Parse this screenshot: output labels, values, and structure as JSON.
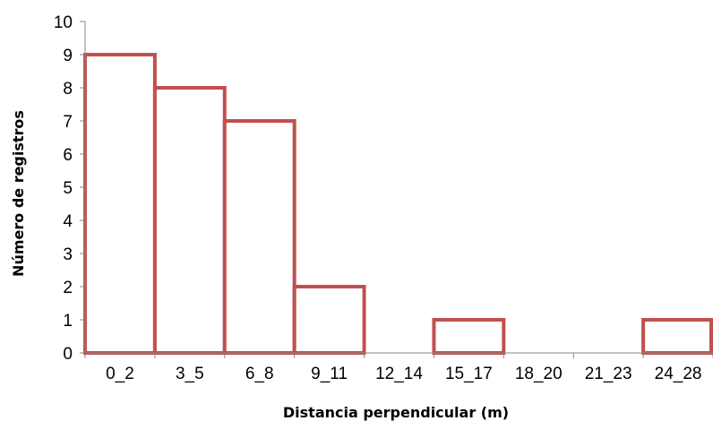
{
  "chart_data": {
    "type": "bar",
    "title": "",
    "xlabel": "Distancia perpendicular (m)",
    "ylabel": "Número de registros",
    "categories": [
      "0_2",
      "3_5",
      "6_8",
      "9_11",
      "12_14",
      "15_17",
      "18_20",
      "21_23",
      "24_28"
    ],
    "values": [
      9,
      8,
      7,
      2,
      0,
      1,
      0,
      0,
      1
    ],
    "ylim": [
      0,
      10
    ],
    "yticks": [
      0,
      1,
      2,
      3,
      4,
      5,
      6,
      7,
      8,
      9,
      10
    ],
    "grid": false,
    "legend": "none",
    "bar_style": "outline",
    "colors": {
      "bar_stroke": "#C0504D",
      "bar_fill": "#FFFFFF",
      "axis": "#868686"
    }
  }
}
